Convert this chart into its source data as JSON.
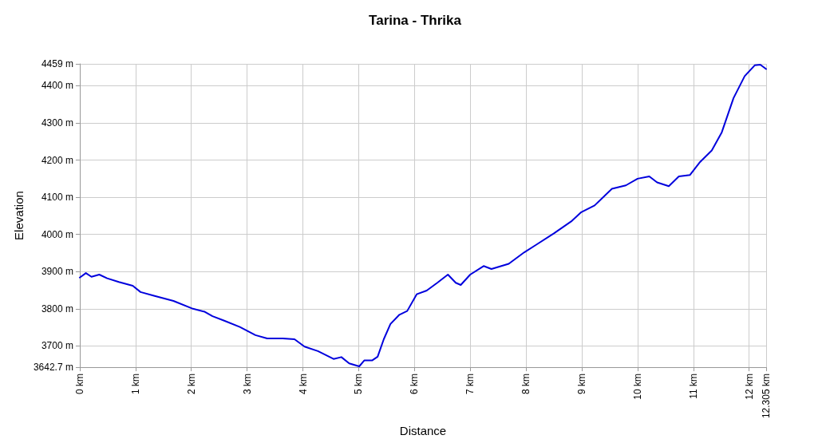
{
  "chart_data": {
    "type": "line",
    "title": "Tarina - Thrika",
    "xlabel": "Distance",
    "ylabel": "Elevation",
    "x": [
      0,
      0.11,
      0.21,
      0.35,
      0.49,
      0.7,
      0.95,
      1.09,
      1.33,
      1.68,
      2.03,
      2.24,
      2.38,
      2.59,
      2.87,
      3.15,
      3.36,
      3.64,
      3.85,
      4.03,
      4.27,
      4.55,
      4.69,
      4.83,
      5.01,
      5.1,
      5.24,
      5.34,
      5.45,
      5.57,
      5.73,
      5.87,
      6.04,
      6.22,
      6.41,
      6.6,
      6.74,
      6.83,
      7.0,
      7.24,
      7.38,
      7.69,
      7.97,
      8.18,
      8.5,
      8.81,
      8.99,
      9.23,
      9.54,
      9.79,
      10.0,
      10.21,
      10.35,
      10.56,
      10.74,
      10.94,
      11.12,
      11.33,
      11.51,
      11.72,
      11.92,
      12.1,
      12.2,
      12.305
    ],
    "series": [
      {
        "color": "#0000dd",
        "values": [
          3884,
          3896,
          3886,
          3892,
          3882,
          3872,
          3862,
          3845,
          3835,
          3821,
          3800,
          3792,
          3780,
          3768,
          3751,
          3729,
          3720,
          3720,
          3718,
          3698,
          3686,
          3665,
          3670,
          3653,
          3645,
          3661,
          3661,
          3671,
          3718,
          3759,
          3784,
          3794,
          3839,
          3849,
          3870,
          3892,
          3870,
          3864,
          3892,
          3915,
          3907,
          3921,
          3952,
          3972,
          4003,
          4035,
          4060,
          4078,
          4123,
          4132,
          4150,
          4156,
          4140,
          4130,
          4156,
          4160,
          4195,
          4226,
          4275,
          4367,
          4426,
          4455,
          4457,
          4445
        ]
      }
    ],
    "xlim": [
      0,
      12.305
    ],
    "xticks": [
      {
        "value": 0,
        "label": "0 km"
      },
      {
        "value": 1,
        "label": "1 km"
      },
      {
        "value": 2,
        "label": "2 km"
      },
      {
        "value": 3,
        "label": "3 km"
      },
      {
        "value": 4,
        "label": "4 km"
      },
      {
        "value": 5,
        "label": "5 km"
      },
      {
        "value": 6,
        "label": "6 km"
      },
      {
        "value": 7,
        "label": "7 km"
      },
      {
        "value": 8,
        "label": "8 km"
      },
      {
        "value": 9,
        "label": "9 km"
      },
      {
        "value": 10,
        "label": "10 km"
      },
      {
        "value": 11,
        "label": "11 km"
      },
      {
        "value": 12,
        "label": "12 km"
      },
      {
        "value": 12.305,
        "label": "12.305 km"
      }
    ],
    "ylim": [
      3642.7,
      4459
    ],
    "yticks": [
      {
        "value": 3642.7,
        "label": "3642.7 m"
      },
      {
        "value": 3700,
        "label": "3700 m"
      },
      {
        "value": 3800,
        "label": "3800 m"
      },
      {
        "value": 3900,
        "label": "3900 m"
      },
      {
        "value": 4000,
        "label": "4000 m"
      },
      {
        "value": 4100,
        "label": "4100 m"
      },
      {
        "value": 4200,
        "label": "4200 m"
      },
      {
        "value": 4300,
        "label": "4300 m"
      },
      {
        "value": 4400,
        "label": "4400 m"
      },
      {
        "value": 4459,
        "label": "4459 m"
      }
    ],
    "grid": true,
    "marker": "none",
    "line_style": "solid"
  }
}
